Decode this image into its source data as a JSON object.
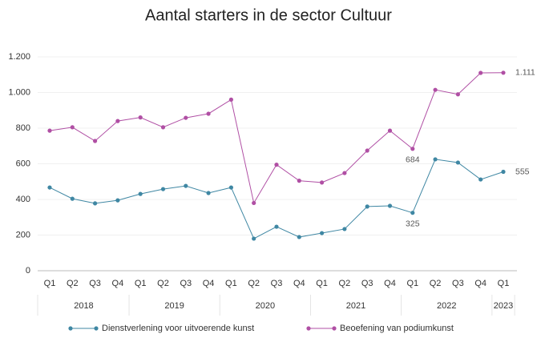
{
  "chart_data": {
    "type": "line",
    "title": "Aantal starters in de sector Cultuur",
    "categories": [
      "Q1",
      "Q2",
      "Q3",
      "Q4",
      "Q1",
      "Q2",
      "Q3",
      "Q4",
      "Q1",
      "Q2",
      "Q3",
      "Q4",
      "Q1",
      "Q2",
      "Q3",
      "Q4",
      "Q1",
      "Q2",
      "Q3",
      "Q4",
      "Q1"
    ],
    "groups": [
      {
        "label": "2018",
        "span": 4
      },
      {
        "label": "2019",
        "span": 4
      },
      {
        "label": "2020",
        "span": 4
      },
      {
        "label": "2021",
        "span": 4
      },
      {
        "label": "2022",
        "span": 4
      },
      {
        "label": "2023",
        "span": 1
      }
    ],
    "series": [
      {
        "name": "Dienstverlening voor uitvoerende kunst",
        "color": "#3f87a3",
        "values": [
          467,
          404,
          378,
          395,
          431,
          458,
          476,
          436,
          467,
          180,
          247,
          189,
          211,
          234,
          360,
          364,
          325,
          625,
          607,
          512,
          555
        ],
        "value_labels": [
          null,
          null,
          null,
          null,
          null,
          null,
          null,
          null,
          null,
          null,
          null,
          null,
          null,
          null,
          null,
          null,
          "325",
          null,
          null,
          null,
          "555"
        ]
      },
      {
        "name": "Beoefening van podiumkunst",
        "color": "#b04fa4",
        "values": [
          786,
          805,
          728,
          840,
          860,
          805,
          858,
          881,
          960,
          380,
          595,
          505,
          495,
          548,
          674,
          786,
          684,
          1015,
          990,
          1110,
          1111
        ],
        "value_labels": [
          null,
          null,
          null,
          null,
          null,
          null,
          null,
          null,
          null,
          null,
          null,
          null,
          null,
          null,
          null,
          null,
          "684",
          null,
          null,
          null,
          "1.111"
        ]
      }
    ],
    "ylim": [
      0,
      1200
    ],
    "yticks": [
      0,
      200,
      400,
      600,
      800,
      {
        "value": 1000,
        "label": "1.000"
      },
      {
        "value": 1200,
        "label": "1.200"
      }
    ],
    "grid": true
  }
}
